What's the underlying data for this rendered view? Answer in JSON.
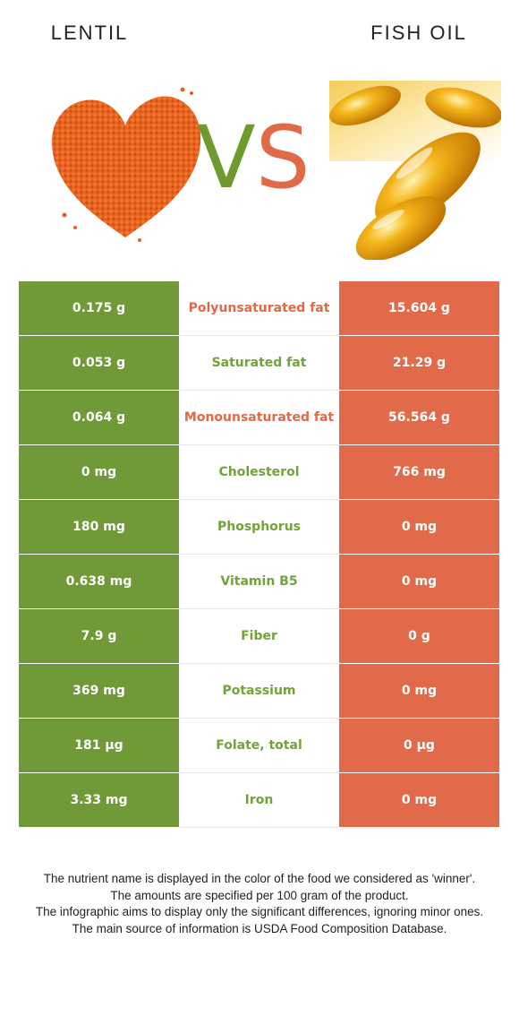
{
  "header": {
    "left_food": "LENTIL",
    "right_food": "FISH OIL",
    "vs_v": "V",
    "vs_s": "S"
  },
  "colors": {
    "left_food": "#6f9a37",
    "right_food": "#e06a4a"
  },
  "images": {
    "left": "lentil-heart-image",
    "right": "fish-oil-capsules-image"
  },
  "rows": [
    {
      "left": "0.175 g",
      "nutrient": "Polyunsaturated fat",
      "right": "15.604 g",
      "winner": "right"
    },
    {
      "left": "0.053 g",
      "nutrient": "Saturated fat",
      "right": "21.29 g",
      "winner": "left"
    },
    {
      "left": "0.064 g",
      "nutrient": "Monounsaturated fat",
      "right": "56.564 g",
      "winner": "right"
    },
    {
      "left": "0 mg",
      "nutrient": "Cholesterol",
      "right": "766 mg",
      "winner": "left"
    },
    {
      "left": "180 mg",
      "nutrient": "Phosphorus",
      "right": "0 mg",
      "winner": "left"
    },
    {
      "left": "0.638 mg",
      "nutrient": "Vitamin B5",
      "right": "0 mg",
      "winner": "left"
    },
    {
      "left": "7.9 g",
      "nutrient": "Fiber",
      "right": "0 g",
      "winner": "left"
    },
    {
      "left": "369 mg",
      "nutrient": "Potassium",
      "right": "0 mg",
      "winner": "left"
    },
    {
      "left": "181 µg",
      "nutrient": "Folate, total",
      "right": "0 µg",
      "winner": "left"
    },
    {
      "left": "3.33 mg",
      "nutrient": "Iron",
      "right": "0 mg",
      "winner": "left"
    }
  ],
  "footnote": [
    "The nutrient name is displayed in the color of the food we considered as 'winner'.",
    "The amounts are specified per 100 gram of the product.",
    "The infographic aims to display only the significant differences, ignoring minor ones.",
    "The main source of information is USDA Food Composition Database."
  ]
}
